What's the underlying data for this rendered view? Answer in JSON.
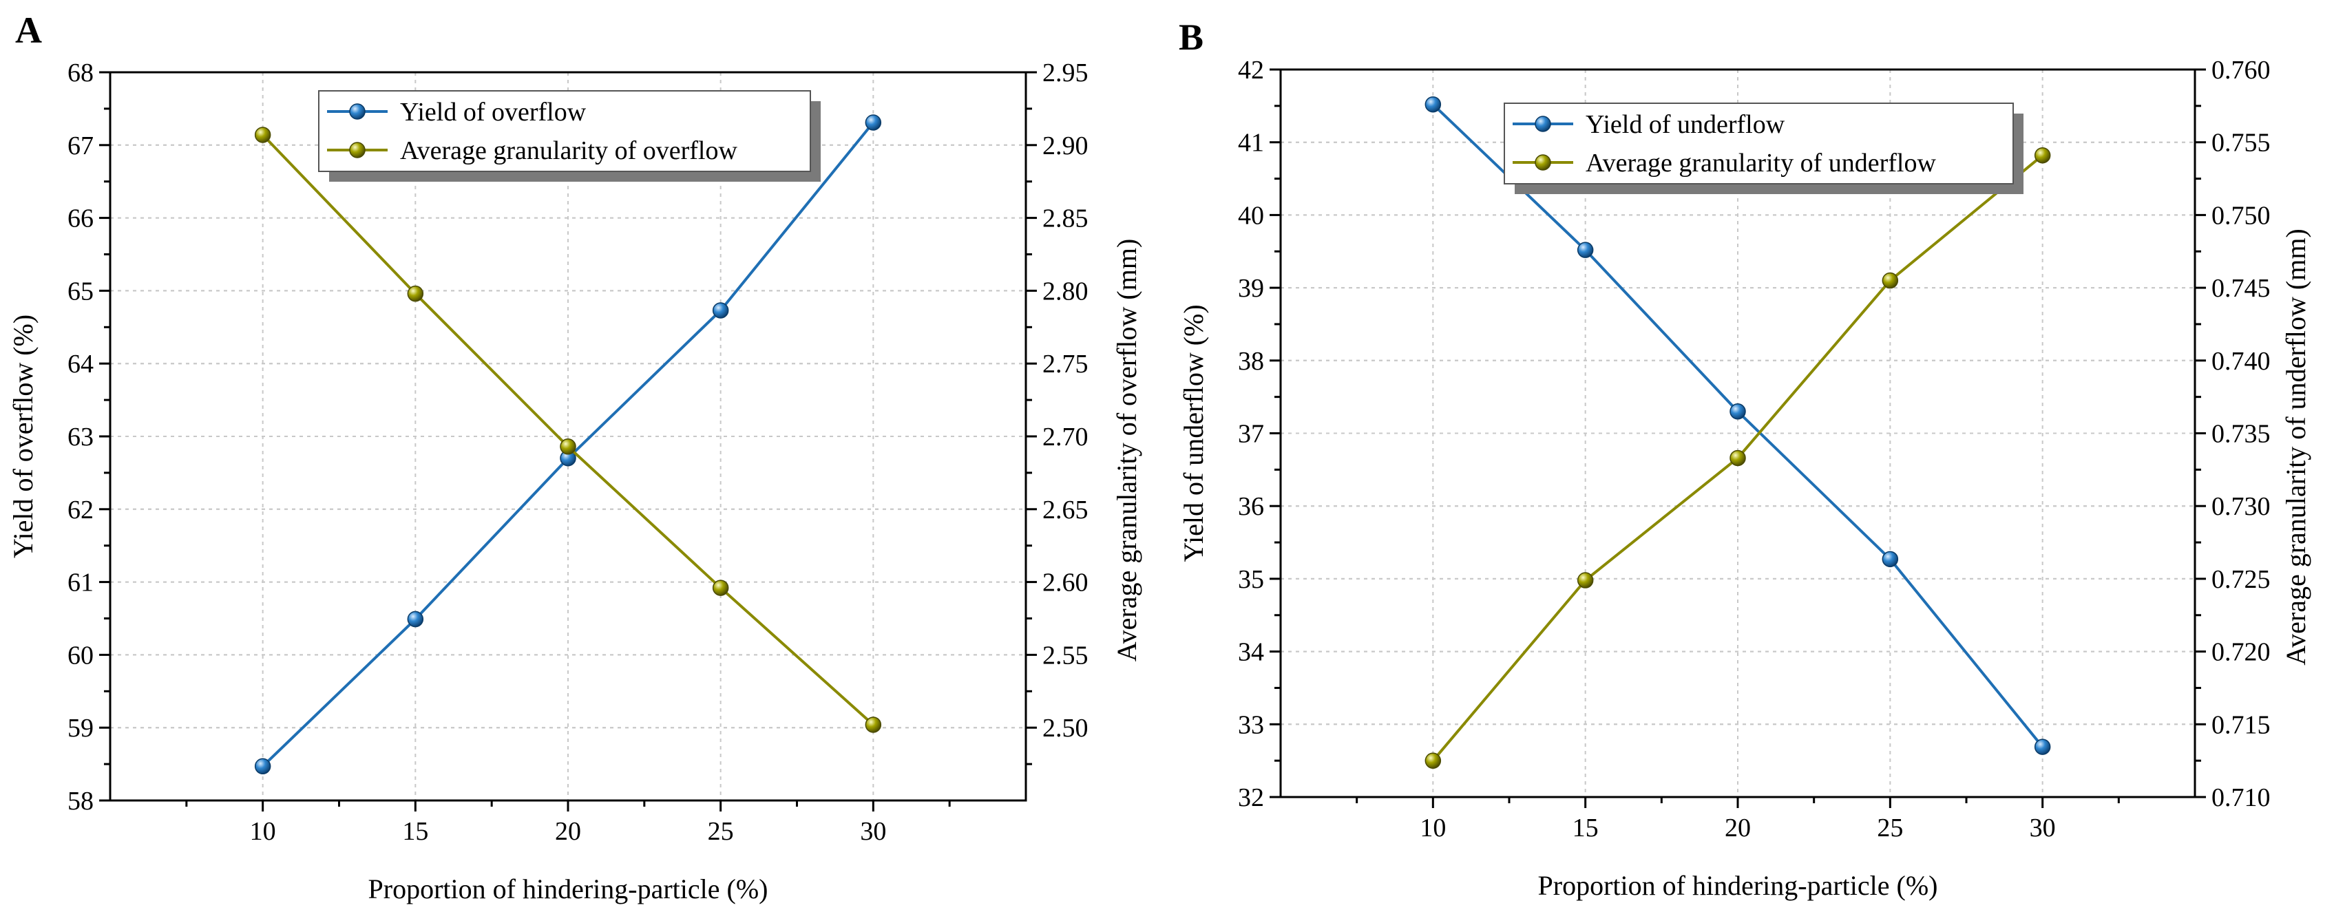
{
  "chart_data": [
    {
      "type": "line",
      "panel_label": "A",
      "xlabel": "Proportion of hindering-particle (%)",
      "ylabel": "Yield of overflow (%)",
      "y2label": "Average granularity of overflow (mm)",
      "x": [
        10,
        15,
        20,
        25,
        30
      ],
      "xticks": [
        "10",
        "15",
        "20",
        "25",
        "30"
      ],
      "xlim": [
        5,
        35
      ],
      "ylim": [
        58,
        68
      ],
      "yticks": [
        "58",
        "59",
        "60",
        "61",
        "62",
        "63",
        "64",
        "65",
        "66",
        "67",
        "68"
      ],
      "y2lim": [
        2.45,
        2.95
      ],
      "y2ticks": [
        "2.50",
        "2.55",
        "2.60",
        "2.65",
        "2.70",
        "2.75",
        "2.80",
        "2.85",
        "2.90",
        "2.95"
      ],
      "grid": true,
      "legend_position": "top-center",
      "series": [
        {
          "name": "Yield of overflow",
          "axis": "left",
          "color": "#1f6fb4",
          "values": [
            58.47,
            60.49,
            62.7,
            64.73,
            67.31
          ]
        },
        {
          "name": "Average granularity of overflow",
          "axis": "right",
          "color": "#8a8a00",
          "values": [
            2.907,
            2.798,
            2.693,
            2.596,
            2.502
          ]
        }
      ]
    },
    {
      "type": "line",
      "panel_label": "B",
      "xlabel": "Proportion of hindering-particle (%)",
      "ylabel": "Yield of underflow  (%)",
      "y2label": "Average granularity of underflow (mm)",
      "x": [
        10,
        15,
        20,
        25,
        30
      ],
      "xticks": [
        "10",
        "15",
        "20",
        "25",
        "30"
      ],
      "xlim": [
        5,
        35
      ],
      "ylim": [
        32,
        42
      ],
      "yticks": [
        "32",
        "33",
        "34",
        "35",
        "36",
        "37",
        "38",
        "39",
        "40",
        "41",
        "42"
      ],
      "y2lim": [
        0.71,
        0.76
      ],
      "y2ticks": [
        "0.710",
        "0.715",
        "0.720",
        "0.725",
        "0.730",
        "0.735",
        "0.740",
        "0.745",
        "0.750",
        "0.755",
        "0.760"
      ],
      "grid": true,
      "legend_position": "top-center",
      "series": [
        {
          "name": "Yield of underflow",
          "axis": "left",
          "color": "#1f6fb4",
          "values": [
            41.52,
            39.52,
            37.3,
            35.27,
            32.69
          ]
        },
        {
          "name": "Average granularity of underflow",
          "axis": "right",
          "color": "#8a8a00",
          "values": [
            0.7125,
            0.7249,
            0.7333,
            0.7455,
            0.7541
          ]
        }
      ]
    }
  ]
}
